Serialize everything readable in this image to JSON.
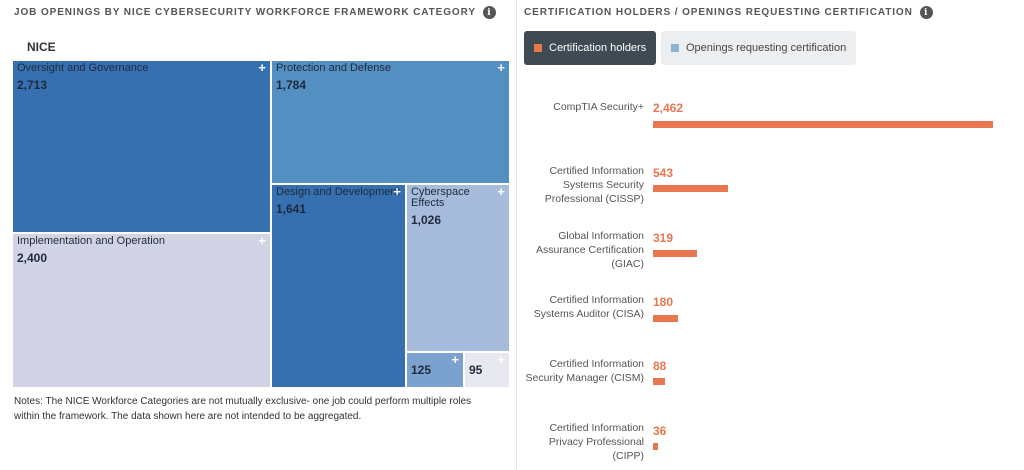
{
  "left_title": "JOB OPENINGS BY NICE CYBERSECURITY WORKFORCE FRAMEWORK CATEGORY",
  "right_title": "CERTIFICATION HOLDERS / OPENINGS REQUESTING CERTIFICATION",
  "info_glyph": "i",
  "plus_glyph": "+",
  "notes": "Notes: The NICE Workforce Categories are not mutually exclusive- one job could perform multiple roles within the framework. The data shown here are not intended to be aggregated.",
  "legend": [
    {
      "label": "Certification holders",
      "color": "#e8774f",
      "active": true
    },
    {
      "label": "Openings requesting certification",
      "color": "#8fb3d9",
      "active": false
    }
  ],
  "chart_data": [
    {
      "type": "treemap",
      "title": "NICE",
      "cells": [
        {
          "label": "Oversight and Governance",
          "value": 2713,
          "display": "2,713",
          "color": "#3770b1"
        },
        {
          "label": "Protection and Defense",
          "value": 1784,
          "display": "1,784",
          "color": "#548fc2"
        },
        {
          "label": "Design and Development",
          "value": 1641,
          "display": "1,641",
          "color": "#3770b1"
        },
        {
          "label": "Cyberspace Effects",
          "value": 1026,
          "display": "1,026",
          "color": "#a7bcdd"
        },
        {
          "label": "Implementation and Operation",
          "value": 2400,
          "display": "2,400",
          "color": "#d2d4e6"
        },
        {
          "label": "",
          "value": 125,
          "display": "125",
          "color": "#7ba1cf"
        },
        {
          "label": "",
          "value": 95,
          "display": "95",
          "color": "#e8e9f0"
        }
      ]
    },
    {
      "type": "bar",
      "orientation": "horizontal",
      "series_name": "Certification holders",
      "color": "#e8774f",
      "categories": [
        "CompTIA Security+",
        "Certified Information Systems Security Professional (CISSP)",
        "Global Information Assurance Certification (GIAC)",
        "Certified Information Systems Auditor (CISA)",
        "Certified Information Security Manager (CISM)",
        "Certified Information Privacy Professional (CIPP)"
      ],
      "values": [
        2462,
        543,
        319,
        180,
        88,
        36
      ],
      "value_labels": [
        "2,462",
        "543",
        "319",
        "180",
        "88",
        "36"
      ]
    }
  ]
}
